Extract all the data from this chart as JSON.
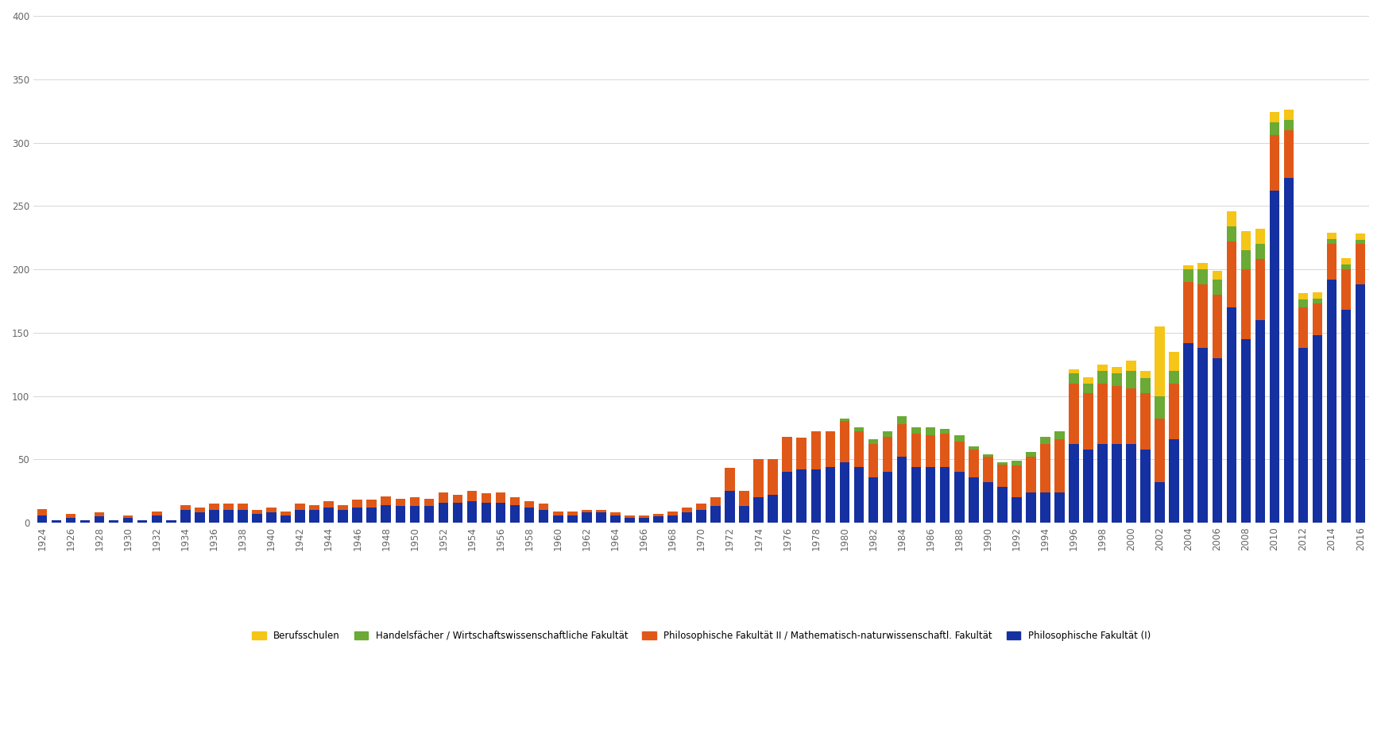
{
  "years": [
    1924,
    1925,
    1926,
    1927,
    1928,
    1929,
    1930,
    1931,
    1932,
    1933,
    1934,
    1935,
    1936,
    1937,
    1938,
    1939,
    1940,
    1941,
    1942,
    1943,
    1944,
    1945,
    1946,
    1947,
    1948,
    1949,
    1950,
    1951,
    1952,
    1953,
    1954,
    1955,
    1956,
    1957,
    1958,
    1959,
    1960,
    1961,
    1962,
    1963,
    1964,
    1965,
    1966,
    1967,
    1968,
    1969,
    1970,
    1971,
    1972,
    1973,
    1974,
    1975,
    1976,
    1977,
    1978,
    1979,
    1980,
    1981,
    1982,
    1983,
    1984,
    1985,
    1986,
    1987,
    1988,
    1989,
    1990,
    1991,
    1992,
    1993,
    1994,
    1995,
    1996,
    1997,
    1998,
    1999,
    2000,
    2001,
    2002,
    2003,
    2004,
    2005,
    2006,
    2007,
    2008,
    2009,
    2010,
    2011,
    2012,
    2013,
    2014,
    2015,
    2016
  ],
  "berufsschulen": [
    0,
    0,
    0,
    0,
    0,
    0,
    0,
    0,
    0,
    0,
    0,
    0,
    0,
    0,
    0,
    0,
    0,
    0,
    0,
    0,
    0,
    0,
    0,
    0,
    0,
    0,
    0,
    0,
    0,
    0,
    0,
    0,
    0,
    0,
    0,
    0,
    0,
    0,
    0,
    0,
    0,
    0,
    0,
    0,
    0,
    0,
    0,
    0,
    0,
    0,
    0,
    0,
    0,
    0,
    0,
    0,
    0,
    0,
    0,
    0,
    0,
    0,
    0,
    0,
    0,
    0,
    0,
    0,
    0,
    0,
    0,
    0,
    3,
    5,
    5,
    5,
    8,
    6,
    55,
    15,
    3,
    5,
    7,
    12,
    15,
    12,
    8,
    8,
    5,
    5,
    5,
    5,
    5
  ],
  "handelsfaecher": [
    0,
    0,
    0,
    0,
    0,
    0,
    0,
    0,
    0,
    0,
    0,
    0,
    0,
    0,
    0,
    0,
    0,
    0,
    0,
    0,
    0,
    0,
    0,
    0,
    0,
    0,
    0,
    0,
    0,
    0,
    0,
    0,
    0,
    0,
    0,
    0,
    0,
    0,
    0,
    0,
    0,
    0,
    0,
    0,
    0,
    0,
    0,
    0,
    0,
    0,
    0,
    0,
    0,
    0,
    0,
    0,
    2,
    3,
    4,
    4,
    6,
    5,
    6,
    4,
    5,
    2,
    2,
    2,
    4,
    4,
    6,
    6,
    8,
    8,
    10,
    10,
    14,
    12,
    18,
    10,
    10,
    12,
    12,
    12,
    15,
    12,
    10,
    8,
    6,
    4,
    4,
    4,
    3
  ],
  "phil2": [
    5,
    0,
    3,
    0,
    3,
    0,
    2,
    0,
    3,
    0,
    4,
    4,
    5,
    5,
    5,
    3,
    4,
    3,
    5,
    4,
    5,
    4,
    6,
    6,
    7,
    6,
    7,
    6,
    8,
    6,
    8,
    7,
    8,
    6,
    5,
    5,
    3,
    3,
    2,
    2,
    2,
    2,
    2,
    2,
    3,
    4,
    5,
    7,
    18,
    12,
    30,
    28,
    28,
    25,
    30,
    28,
    32,
    28,
    26,
    28,
    26,
    26,
    25,
    26,
    24,
    22,
    20,
    18,
    25,
    28,
    38,
    42,
    48,
    44,
    48,
    46,
    44,
    44,
    50,
    44,
    48,
    50,
    50,
    52,
    55,
    48,
    44,
    38,
    32,
    25,
    28,
    32,
    32
  ],
  "phil1": [
    6,
    2,
    4,
    2,
    5,
    2,
    4,
    2,
    6,
    2,
    10,
    8,
    10,
    10,
    10,
    7,
    8,
    6,
    10,
    10,
    12,
    10,
    12,
    12,
    14,
    13,
    13,
    13,
    16,
    16,
    17,
    16,
    16,
    14,
    12,
    10,
    6,
    6,
    8,
    8,
    6,
    4,
    4,
    5,
    6,
    8,
    10,
    13,
    25,
    13,
    20,
    22,
    40,
    42,
    42,
    44,
    48,
    44,
    36,
    40,
    52,
    44,
    44,
    44,
    40,
    36,
    32,
    28,
    20,
    24,
    24,
    24,
    62,
    58,
    62,
    62,
    62,
    58,
    32,
    66,
    142,
    138,
    130,
    170,
    145,
    160,
    262,
    272,
    138,
    148,
    192,
    168,
    188
  ],
  "colors": {
    "berufsschulen": "#f5c518",
    "handelsfaecher": "#6aaa35",
    "phil2": "#e05818",
    "phil1": "#1530a0"
  },
  "labels": {
    "berufsschulen": "Berufsschulen",
    "handelsfaecher": "Handelsfächer / Wirtschaftswissenschaftliche Fakultät",
    "phil2": "Philosophische Fakultät II / Mathematisch-naturwissenschaftl. Fakultät",
    "phil1": "Philosophische Fakultät (I)"
  },
  "ylim": [
    0,
    400
  ],
  "yticks": [
    0,
    50,
    100,
    150,
    200,
    250,
    300,
    350,
    400
  ],
  "background_color": "#ffffff",
  "grid_color": "#d0d0d0"
}
